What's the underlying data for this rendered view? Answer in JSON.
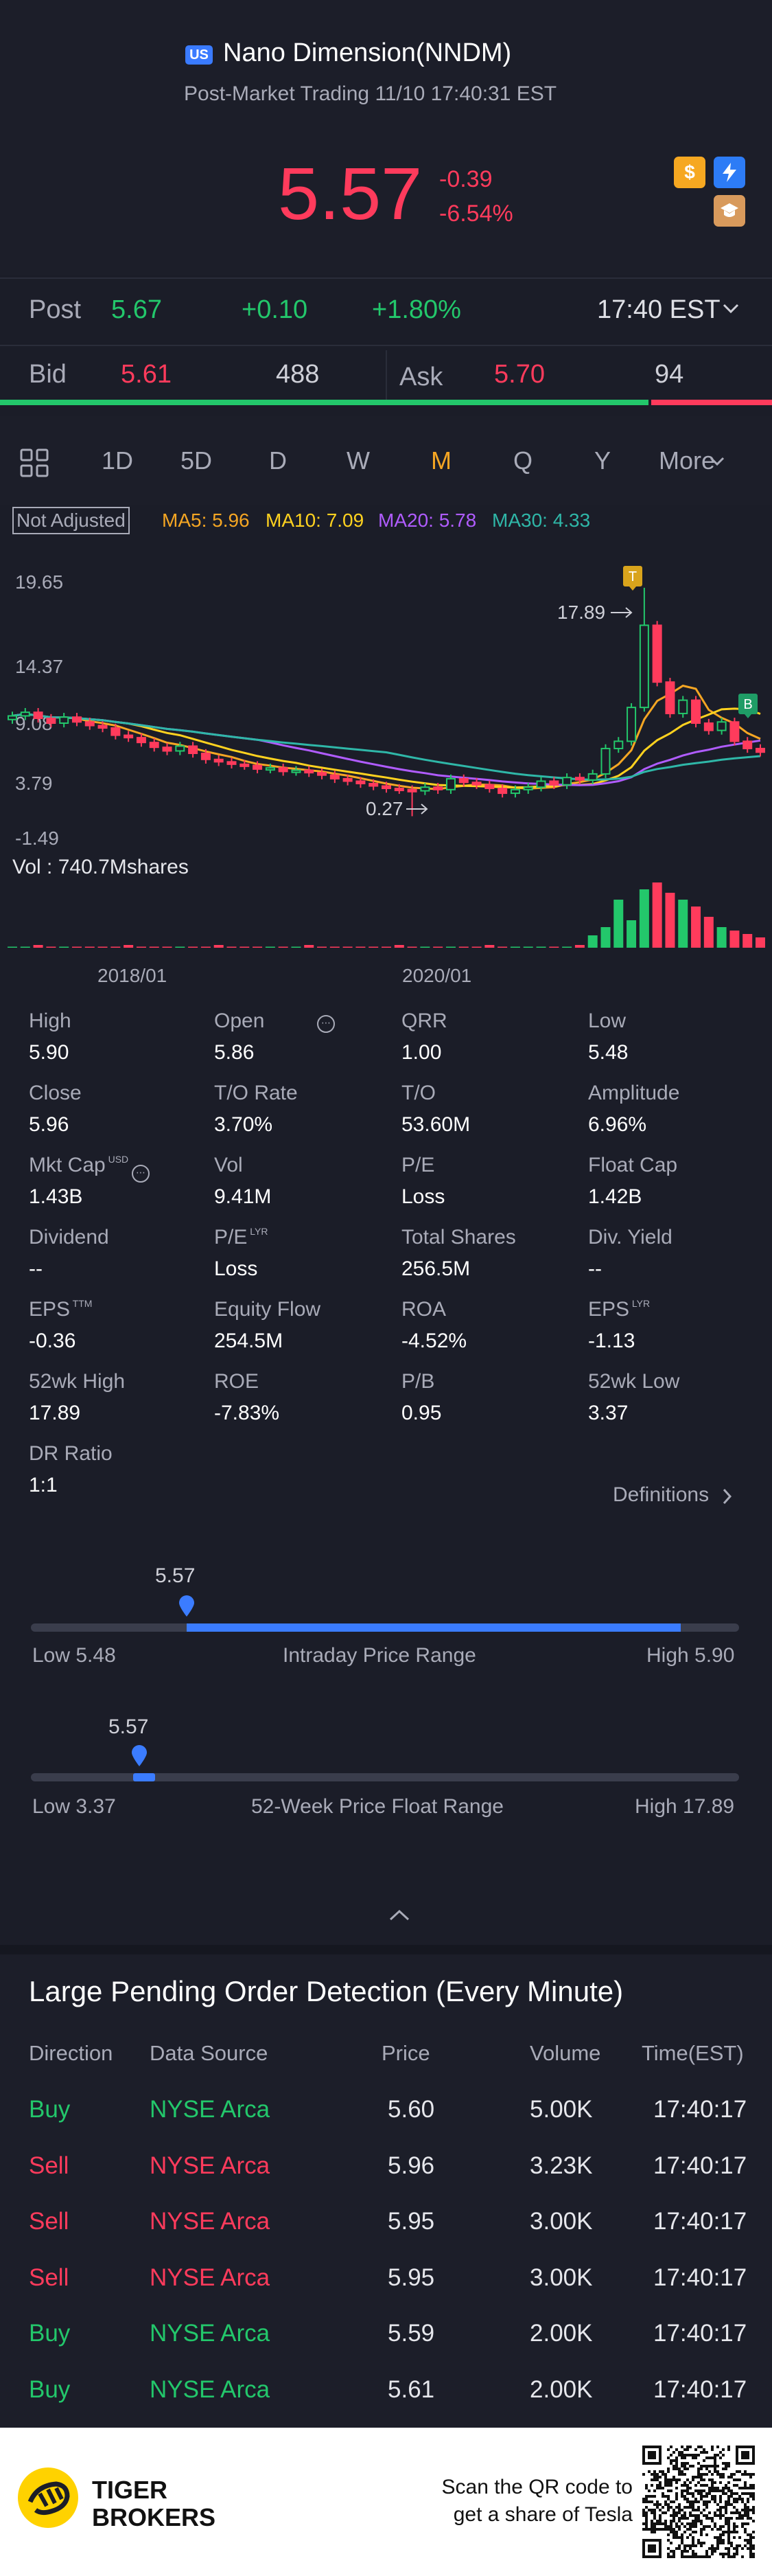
{
  "header": {
    "market_badge": "US",
    "title": "Nano Dimension(NNDM)",
    "subtitle": "Post-Market Trading 11/10 17:40:31 EST",
    "price": "5.57",
    "change": "-0.39",
    "change_pct": "-6.54%",
    "icons": [
      "dollar-icon",
      "lightning-icon",
      "education-icon"
    ]
  },
  "post": {
    "label": "Post",
    "price": "5.67",
    "change": "+0.10",
    "change_pct": "+1.80%",
    "time": "17:40 EST"
  },
  "bidask": {
    "bid_label": "Bid",
    "bid_price": "5.61",
    "bid_size": "488",
    "ask_label": "Ask",
    "ask_price": "5.70",
    "ask_size": "94",
    "bid_share": 0.84
  },
  "periods": {
    "tabs": [
      "1D",
      "5D",
      "D",
      "W",
      "M",
      "Q",
      "Y"
    ],
    "active": "M",
    "more": "More"
  },
  "chart": {
    "adjust_label": "Not Adjusted",
    "ma5": "MA5: 5.96",
    "ma10": "MA10: 7.09",
    "ma20": "MA20: 5.78",
    "ma30": "MA30: 4.33",
    "y_ticks": [
      "19.65",
      "14.37",
      "9.08",
      "3.79",
      "-1.49"
    ],
    "high_marker": "17.89",
    "low_marker": "0.27",
    "tag_t": "T",
    "tag_b": "B",
    "vol_label": "Vol  : 740.7Mshares",
    "x_ticks": [
      "2018/01",
      "2020/01"
    ],
    "colors": {
      "up": "#23c76b",
      "down": "#ff3b5c",
      "ma5": "#f5a623",
      "ma10": "#ffd21f",
      "ma20": "#b05cff",
      "ma30": "#2fb7a8"
    }
  },
  "stats": {
    "rows": [
      [
        {
          "label": "High",
          "value": "5.90"
        },
        {
          "label": "Open",
          "value": "5.86"
        },
        {
          "label": "QRR",
          "value": "1.00"
        },
        {
          "label": "Low",
          "value": "5.48"
        }
      ],
      [
        {
          "label": "Close",
          "value": "5.96"
        },
        {
          "label": "T/O Rate",
          "value": "3.70%"
        },
        {
          "label": "T/O",
          "value": "53.60M"
        },
        {
          "label": "Amplitude",
          "value": "6.96%"
        }
      ],
      [
        {
          "label": "Mkt Cap",
          "value": "1.43B"
        },
        {
          "label": "Vol",
          "value": "9.41M"
        },
        {
          "label": "P/E",
          "value": "Loss"
        },
        {
          "label": "Float Cap",
          "value": "1.42B"
        }
      ],
      [
        {
          "label": "Dividend",
          "value": "--"
        },
        {
          "label": "P/E",
          "value": "Loss"
        },
        {
          "label": "Total Shares",
          "value": "256.5M"
        },
        {
          "label": "Div. Yield",
          "value": "--"
        }
      ],
      [
        {
          "label": "EPS",
          "value": "-0.36"
        },
        {
          "label": "Equity Flow",
          "value": "254.5M"
        },
        {
          "label": "ROA",
          "value": "-4.52%"
        },
        {
          "label": "EPS",
          "value": "-1.13"
        }
      ],
      [
        {
          "label": "52wk High",
          "value": "17.89"
        },
        {
          "label": "ROE",
          "value": "-7.83%"
        },
        {
          "label": "P/B",
          "value": "0.95"
        },
        {
          "label": "52wk Low",
          "value": "3.37"
        }
      ],
      [
        {
          "label": "DR Ratio",
          "value": "1:1"
        }
      ]
    ],
    "sup_usd": "USD",
    "sup_ttm": "TTM",
    "sup_lyr": "LYR",
    "definitions": "Definitions"
  },
  "intraday": {
    "current": "5.57",
    "low_label": "Low 5.48",
    "title": "Intraday Price Range",
    "high_label": "High 5.90",
    "position": 0.21
  },
  "week52": {
    "current": "5.57",
    "low_label": "Low 3.37",
    "title": "52-Week Price Float Range",
    "high_label": "High 17.89",
    "position": 0.151
  },
  "orders": {
    "title": "Large Pending Order Detection (Every Minute)",
    "headers": [
      "Direction",
      "Data Source",
      "Price",
      "Volume",
      "Time(EST)"
    ],
    "rows": [
      {
        "direction": "Buy",
        "source": "NYSE Arca",
        "price": "5.60",
        "volume": "5.00K",
        "time": "17:40:17"
      },
      {
        "direction": "Sell",
        "source": "NYSE Arca",
        "price": "5.96",
        "volume": "3.23K",
        "time": "17:40:17"
      },
      {
        "direction": "Sell",
        "source": "NYSE Arca",
        "price": "5.95",
        "volume": "3.00K",
        "time": "17:40:17"
      },
      {
        "direction": "Sell",
        "source": "NYSE Arca",
        "price": "5.95",
        "volume": "3.00K",
        "time": "17:40:17"
      },
      {
        "direction": "Buy",
        "source": "NYSE Arca",
        "price": "5.59",
        "volume": "2.00K",
        "time": "17:40:17"
      },
      {
        "direction": "Buy",
        "source": "NYSE Arca",
        "price": "5.61",
        "volume": "2.00K",
        "time": "17:40:17"
      }
    ]
  },
  "footer": {
    "brand_line1": "TIGER",
    "brand_line2": "BROKERS",
    "promo_line1": "Scan the QR code to",
    "promo_line2": "get a share of Tesla"
  }
}
